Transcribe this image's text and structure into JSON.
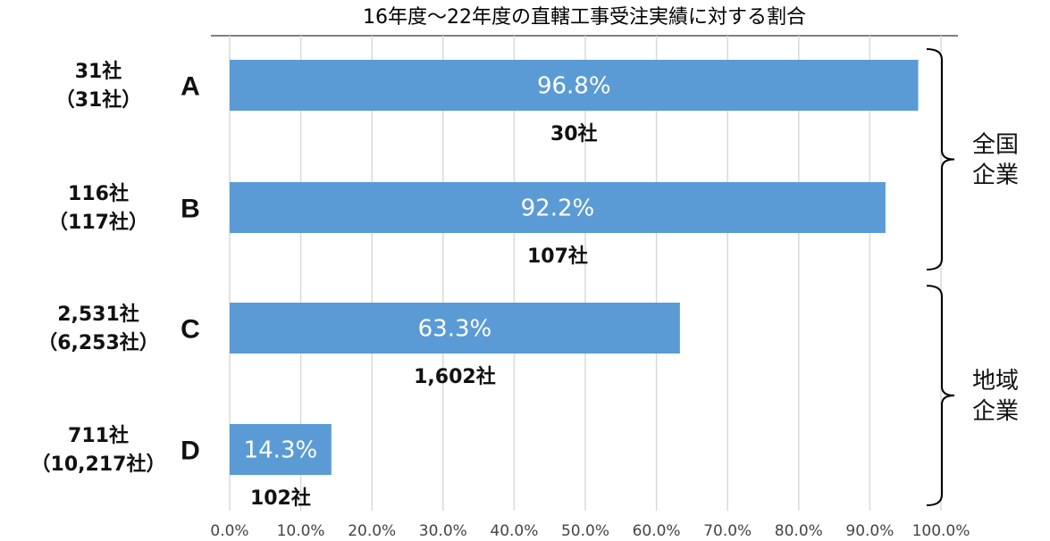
{
  "chart_data": {
    "type": "bar",
    "orientation": "horizontal",
    "title": "16年度～22年度の直轄工事受注実績に対する割合",
    "categories": [
      "A",
      "B",
      "C",
      "D"
    ],
    "values": [
      96.8,
      92.2,
      63.3,
      14.3
    ],
    "value_labels": [
      "96.8%",
      "92.2%",
      "63.3%",
      "14.3%"
    ],
    "count_labels": [
      "30社",
      "107社",
      "1,602社",
      "102社"
    ],
    "left_labels": [
      [
        "31社",
        "（31社）"
      ],
      [
        "116社",
        "（117社）"
      ],
      [
        "2,531社",
        "（6,253社）"
      ],
      [
        "711社",
        "（10,217社）"
      ]
    ],
    "groups": [
      {
        "name": [
          "全国",
          "企業"
        ],
        "categories": [
          "A",
          "B"
        ]
      },
      {
        "name": [
          "地域",
          "企業"
        ],
        "categories": [
          "C",
          "D"
        ]
      }
    ],
    "xlim": [
      0,
      100
    ],
    "xticks": [
      0,
      10,
      20,
      30,
      40,
      50,
      60,
      70,
      80,
      90,
      100
    ],
    "xtick_labels": [
      "0.0%",
      "10.0%",
      "20.0%",
      "30.0%",
      "40.0%",
      "50.0%",
      "60.0%",
      "70.0%",
      "80.0%",
      "90.0%",
      "100.0%"
    ],
    "grid": true,
    "bar_color": "#5b9bd5",
    "grid_color": "#d9d9d9"
  }
}
